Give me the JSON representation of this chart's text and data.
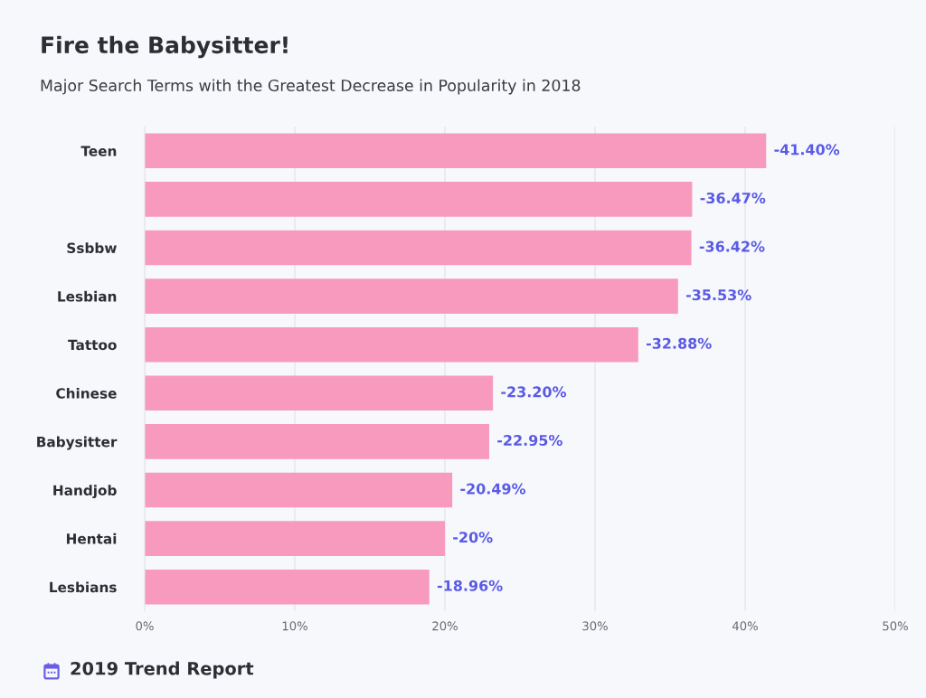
{
  "chart_data": {
    "type": "bar",
    "orientation": "horizontal",
    "title": "Fire the Babysitter!",
    "subtitle": "Major Search Terms with the Greatest Decrease in Popularity in 2018",
    "categories": [
      "Teen",
      null,
      "Ssbbw",
      "Lesbian",
      "Tattoo",
      "Chinese",
      "Babysitter",
      "Handjob",
      "Hentai",
      "Lesbians"
    ],
    "values": [
      -41.4,
      -36.47,
      -36.42,
      -35.53,
      -32.88,
      -23.2,
      -22.95,
      -20.49,
      -20,
      -18.96
    ],
    "value_labels": [
      "-41.40%",
      "-36.47%",
      "-36.42%",
      "-35.53%",
      "-32.88%",
      "-23.20%",
      "-22.95%",
      "-20.49%",
      "-20%",
      "-18.96%"
    ],
    "color": "#f89abd",
    "xlim": [
      0,
      -50
    ],
    "xticks": [
      {
        "value": 0,
        "label": "0%"
      },
      {
        "value": -10,
        "label": "10%"
      },
      {
        "value": -20,
        "label": "20%"
      },
      {
        "value": -30,
        "label": "30%"
      },
      {
        "value": -40,
        "label": "40%"
      },
      {
        "value": -50,
        "label": "50%"
      }
    ],
    "grid": "x",
    "annotations": [
      "2019 Trend Report"
    ]
  }
}
